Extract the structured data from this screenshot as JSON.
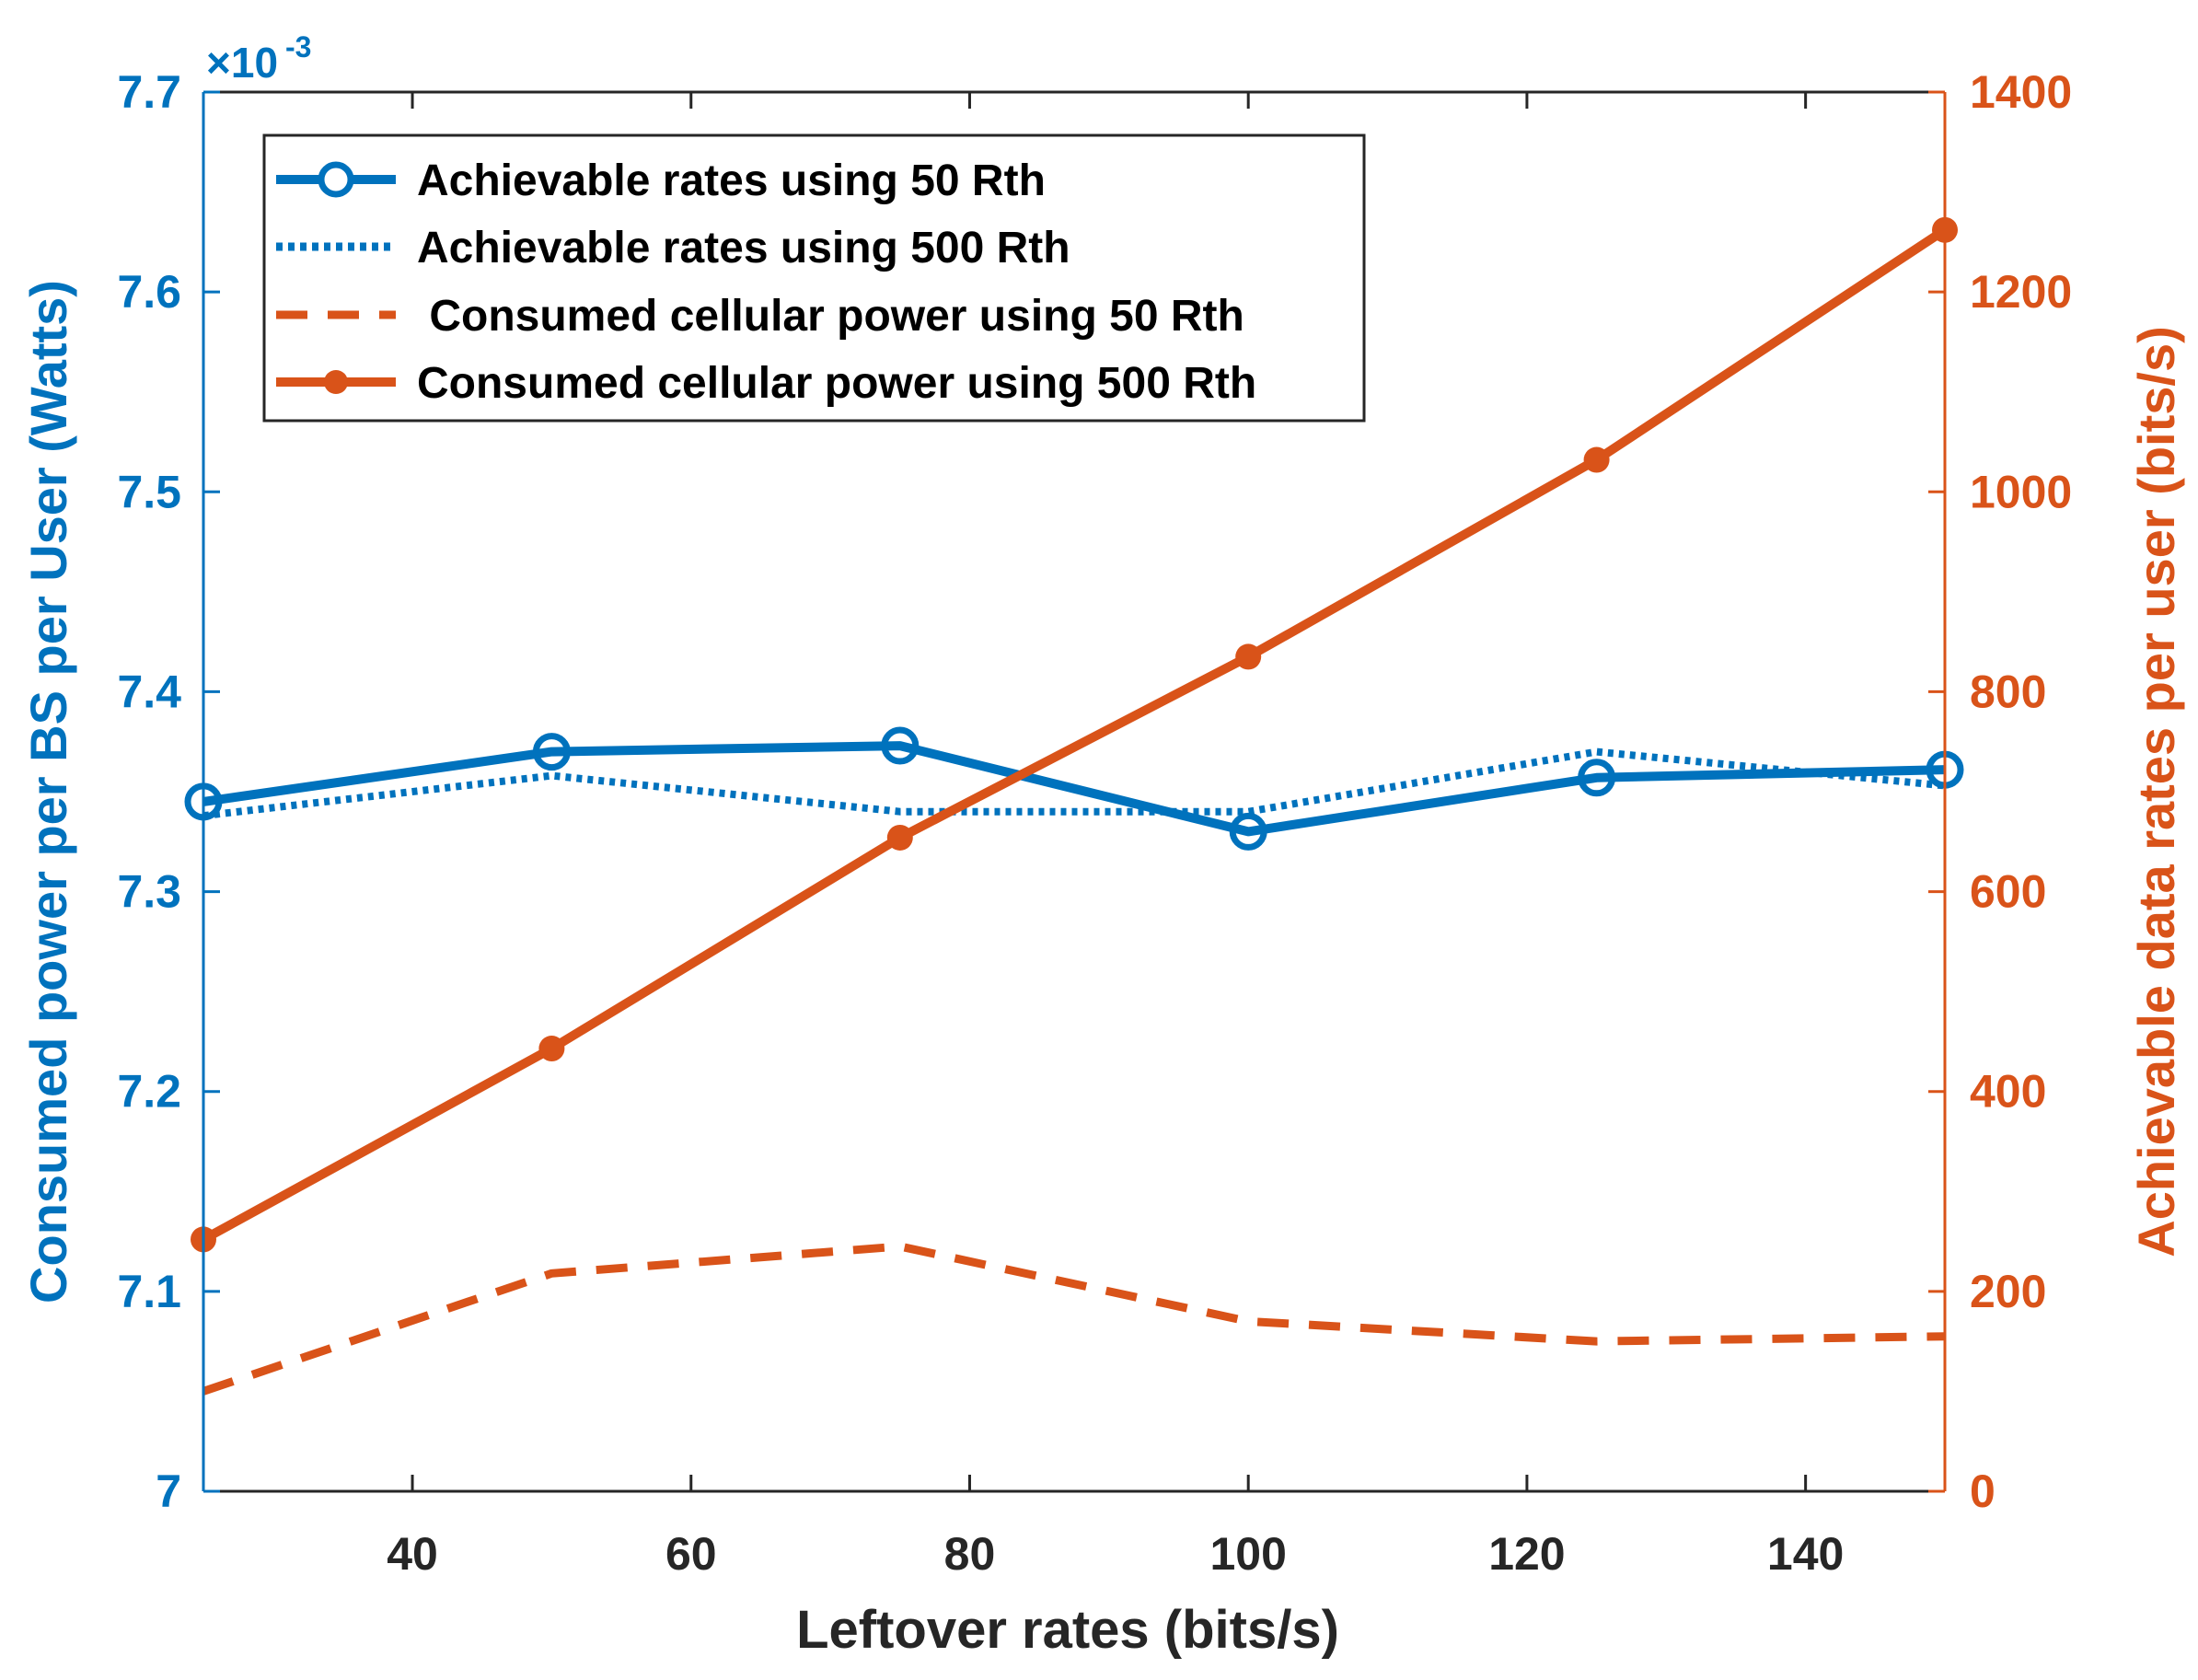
{
  "chart_data": {
    "type": "line",
    "xlabel": "Leftover rates (bits/s)",
    "x": [
      25,
      50,
      75,
      100,
      125,
      150
    ],
    "xlim": [
      25,
      150
    ],
    "xticks": [
      40,
      60,
      80,
      100,
      120,
      140
    ],
    "left_axis": {
      "ylabel": "Consumed power per BS per User (Watts)",
      "ylim": [
        7.0,
        7.7
      ],
      "ticks": [
        7,
        7.1,
        7.2,
        7.3,
        7.4,
        7.5,
        7.6,
        7.7
      ],
      "tick_labels": [
        "7",
        "7.1",
        "7.2",
        "7.3",
        "7.4",
        "7.5",
        "7.6",
        "7.7"
      ],
      "exponent_base": "×10",
      "exponent_power": "-3",
      "color": "#0072BD"
    },
    "right_axis": {
      "ylabel": "Achievable data rates per user (bits/s)",
      "ylim": [
        0,
        1400
      ],
      "ticks": [
        0,
        200,
        400,
        600,
        800,
        1000,
        1200,
        1400
      ],
      "color": "#D95319"
    },
    "series": [
      {
        "name": "Achievable rates using 50 Rth",
        "axis": "left",
        "style": "solid-circle",
        "color": "#0072BD",
        "values": [
          7.345,
          7.37,
          7.373,
          7.33,
          7.357,
          7.361
        ]
      },
      {
        "name": "Achievable rates using 500 Rth",
        "axis": "left",
        "style": "dotted",
        "color": "#0072BD",
        "values": [
          7.338,
          7.358,
          7.34,
          7.34,
          7.37,
          7.353
        ]
      },
      {
        "name": " Consumed cellular power using 50 Rth",
        "axis": "right",
        "style": "dashed",
        "color": "#D95319",
        "values": [
          100,
          218,
          245,
          170,
          150,
          155
        ]
      },
      {
        "name": "Consumed cellular power using 500 Rth",
        "axis": "right",
        "style": "solid-dot",
        "color": "#D95319",
        "values": [
          252,
          443,
          654,
          835,
          1032,
          1262
        ]
      }
    ],
    "legend_position": "top-left",
    "grid": false
  }
}
